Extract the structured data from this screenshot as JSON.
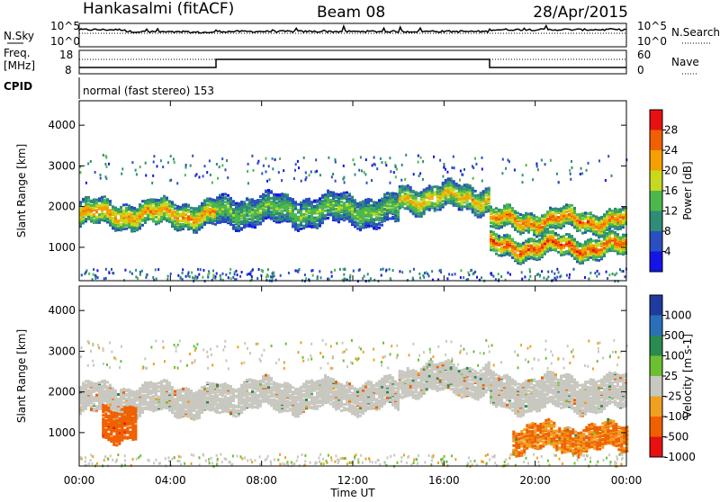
{
  "header": {
    "station": "Hankasalmi (fitACF)",
    "beam": "Beam 08",
    "date": "28/Apr/2015"
  },
  "panels": {
    "nsky": {
      "left_label": "N.Sky",
      "right_label": "N.Search",
      "left_ticks": [
        "10^5",
        "10^0"
      ],
      "right_ticks": [
        "10^5",
        "10^0"
      ]
    },
    "freq": {
      "left_label_1": "Freq.",
      "left_label_2": "[MHz]",
      "left_ticks": [
        "18",
        "8"
      ],
      "right_label": "Nave",
      "right_ticks": [
        "60",
        "0"
      ]
    },
    "cpid": {
      "label": "CPID",
      "text": "normal (fast stereo) 153"
    }
  },
  "chart_data": [
    {
      "type": "heatmap",
      "title": "Power",
      "ylabel": "Slant Range [km]",
      "xlabel": "",
      "xlim": [
        "00:00",
        "24:00"
      ],
      "ylim": [
        180,
        4600
      ],
      "yticks": [
        1000,
        2000,
        3000,
        4000
      ],
      "colorbar": {
        "label": "Power [dB]",
        "ticks": [
          4,
          8,
          12,
          16,
          20,
          24,
          28
        ],
        "bins": [
          {
            "upper": 4,
            "color": "#1414e6"
          },
          {
            "upper": 8,
            "color": "#2a4fc0"
          },
          {
            "upper": 12,
            "color": "#2f8c78"
          },
          {
            "upper": 16,
            "color": "#4cb84c"
          },
          {
            "upper": 20,
            "color": "#c8d81e"
          },
          {
            "upper": 24,
            "color": "#f5a000"
          },
          {
            "upper": 28,
            "color": "#f06000"
          },
          {
            "upper": 32,
            "color": "#e81010"
          }
        ]
      },
      "bands": [
        {
          "t": [
            0,
            6
          ],
          "center_km": 1850,
          "width_km": 300,
          "power_db": 24
        },
        {
          "t": [
            6,
            14
          ],
          "center_km": 1950,
          "width_km": 350,
          "power_db": 16
        },
        {
          "t": [
            14,
            18
          ],
          "center_km": 2250,
          "width_km": 300,
          "power_db": 22
        },
        {
          "t": [
            18,
            24
          ],
          "center_km": 1700,
          "width_km": 250,
          "power_db": 26
        },
        {
          "t": [
            18,
            24
          ],
          "center_km": 1050,
          "width_km": 250,
          "power_db": 28
        }
      ]
    },
    {
      "type": "heatmap",
      "title": "Velocity",
      "ylabel": "Slant Range [km]",
      "xlabel": "Time UT",
      "xlim": [
        "00:00",
        "24:00"
      ],
      "ylim": [
        180,
        4600
      ],
      "yticks": [
        1000,
        2000,
        3000,
        4000
      ],
      "xticks": [
        "00:00",
        "04:00",
        "08:00",
        "12:00",
        "16:00",
        "20:00",
        "00:00"
      ],
      "colorbar": {
        "label": "Velocity [m s-1]",
        "ticks": [
          "1000",
          "500",
          "100",
          "25",
          "-25",
          "-100",
          "-500",
          "-1000"
        ],
        "bins": [
          {
            "range": "> 1000",
            "color": "#1e3ca0"
          },
          {
            "range": "500 to 1000",
            "color": "#2a70b8"
          },
          {
            "range": "100 to 500",
            "color": "#2a8a50"
          },
          {
            "range": "25 to 100",
            "color": "#6cc030"
          },
          {
            "range": "-25 to 25",
            "color": "#c8c8c0"
          },
          {
            "range": "-100 to -25",
            "color": "#f0a020"
          },
          {
            "range": "-500 to -100",
            "color": "#f06000"
          },
          {
            "range": "< -1000",
            "color": "#e81010"
          }
        ]
      },
      "bands": [
        {
          "t": [
            0,
            6
          ],
          "center_km": 1850,
          "width_km": 350,
          "velocity": 0
        },
        {
          "t": [
            1,
            2.5
          ],
          "center_km": 1300,
          "width_km": 400,
          "velocity": -300
        },
        {
          "t": [
            6,
            14
          ],
          "center_km": 1950,
          "width_km": 350,
          "velocity": 0
        },
        {
          "t": [
            14,
            18
          ],
          "center_km": 2350,
          "width_km": 350,
          "velocity": 0
        },
        {
          "t": [
            18,
            24
          ],
          "center_km": 2000,
          "width_km": 400,
          "velocity": 0
        },
        {
          "t": [
            19,
            24
          ],
          "center_km": 900,
          "width_km": 300,
          "velocity": -100
        }
      ]
    }
  ]
}
